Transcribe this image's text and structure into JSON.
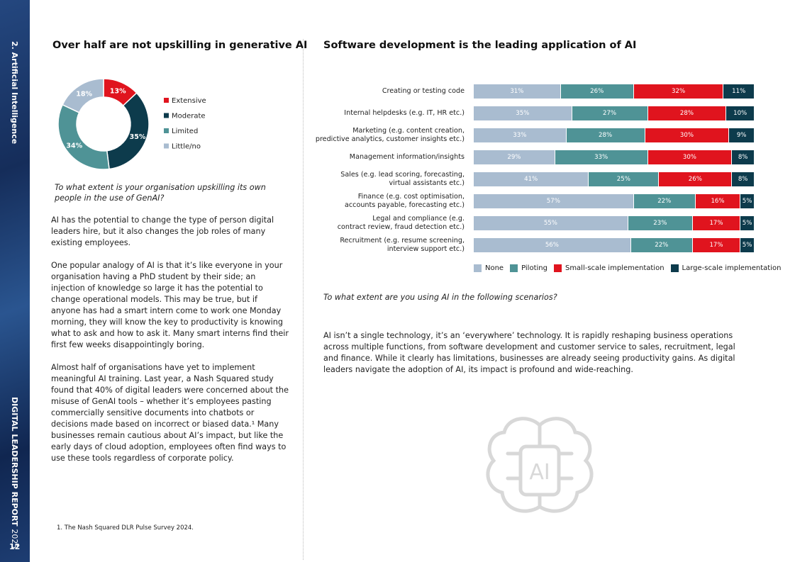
{
  "sidebar": {
    "section": "2. Artificial Intelligence",
    "report": "DIGITAL LEADERSHIP REPORT",
    "year": "2025",
    "page": "12"
  },
  "left": {
    "question": "To what extent is your organisation upskilling its own people in the use of GenAI?",
    "paragraphs": [
      "AI has the potential to change the type of person digital leaders hire, but it also changes the job roles of many existing employees.",
      "One popular analogy of AI is that it’s like everyone in your organisation having a PhD student by their side; an injection of knowledge so large it has the potential to change operational models. This may be true, but if anyone has had a smart intern come to work one Monday morning, they will know the key to productivity is knowing what to ask and how to ask it. Many smart interns find their first few weeks disappointingly boring.",
      "Almost half of organisations have yet to implement meaningful AI training. Last year, a Nash Squared study found that 40% of digital leaders were concerned about the misuse of GenAI tools – whether it’s employees pasting commercially sensitive documents into chatbots or decisions made based on incorrect or biased data.¹ Many businesses remain cautious about AI’s impact, but like the early days of cloud adoption, employees often find ways to use these tools regardless of corporate policy."
    ],
    "footnote": "1. The Nash Squared DLR Pulse Survey 2024."
  },
  "right": {
    "question": "To what extent are you using AI in the following scenarios?",
    "paragraph": "AI isn’t a single technology, it’s an ‘everywhere’ technology. It is rapidly reshaping business operations across multiple functions, from software development and customer service to sales, recruitment, legal and finance. While it clearly has limitations, businesses are already seeing productivity gains. As digital leaders navigate the adoption of AI, its impact is profound and wide-reaching.",
    "icon_label": "AI"
  },
  "chart_data": [
    {
      "type": "pie",
      "donut": true,
      "title": "Over half are not upskilling in generative AI",
      "categories": [
        "Extensive",
        "Moderate",
        "Limited",
        "Little/no"
      ],
      "values": [
        13,
        35,
        34,
        18
      ],
      "value_labels": [
        "13%",
        "35%",
        "34%",
        "18%"
      ],
      "colors": [
        "#e0141e",
        "#0d3b4c",
        "#4f9396",
        "#a9bcd0"
      ]
    },
    {
      "type": "bar",
      "orientation": "horizontal",
      "stacked": true,
      "title": "Software development is the leading application of AI",
      "categories": [
        "Creating or testing code",
        "Internal helpdesks (e.g. IT, HR etc.)",
        "Marketing (e.g. content creation,\npredictive analytics, customer insights etc.)",
        "Management information/insights",
        "Sales (e.g. lead scoring, forecasting,\nvirtual assistants etc.)",
        "Finance (e.g. cost optimisation,\naccounts payable, forecasting etc.)",
        "Legal and compliance (e.g.\ncontract review, fraud detection etc.)",
        "Recruitment (e.g. resume screening,\ninterview support etc.)"
      ],
      "series": [
        {
          "name": "None",
          "color": "#a9bcd0",
          "values": [
            31,
            35,
            33,
            29,
            41,
            57,
            55,
            56
          ],
          "value_labels": [
            "31%",
            "35%",
            "33%",
            "29%",
            "41%",
            "57%",
            "55%",
            "56%"
          ]
        },
        {
          "name": "Piloting",
          "color": "#4f9396",
          "values": [
            26,
            27,
            28,
            33,
            25,
            22,
            23,
            22
          ],
          "value_labels": [
            "26%",
            "27%",
            "28%",
            "33%",
            "25%",
            "22%",
            "23%",
            "22%"
          ]
        },
        {
          "name": "Small-scale implementation",
          "color": "#e0141e",
          "values": [
            32,
            28,
            30,
            30,
            26,
            16,
            17,
            17
          ],
          "value_labels": [
            "32%",
            "28%",
            "30%",
            "30%",
            "26%",
            "16%",
            "17%",
            "17%"
          ]
        },
        {
          "name": "Large-scale implementation",
          "color": "#0d3b4c",
          "values": [
            11,
            10,
            9,
            8,
            8,
            5,
            5,
            5
          ],
          "value_labels": [
            "11%",
            "10%",
            "9%",
            "8%",
            "8%",
            "5%",
            "5%",
            "5%"
          ]
        }
      ]
    }
  ]
}
